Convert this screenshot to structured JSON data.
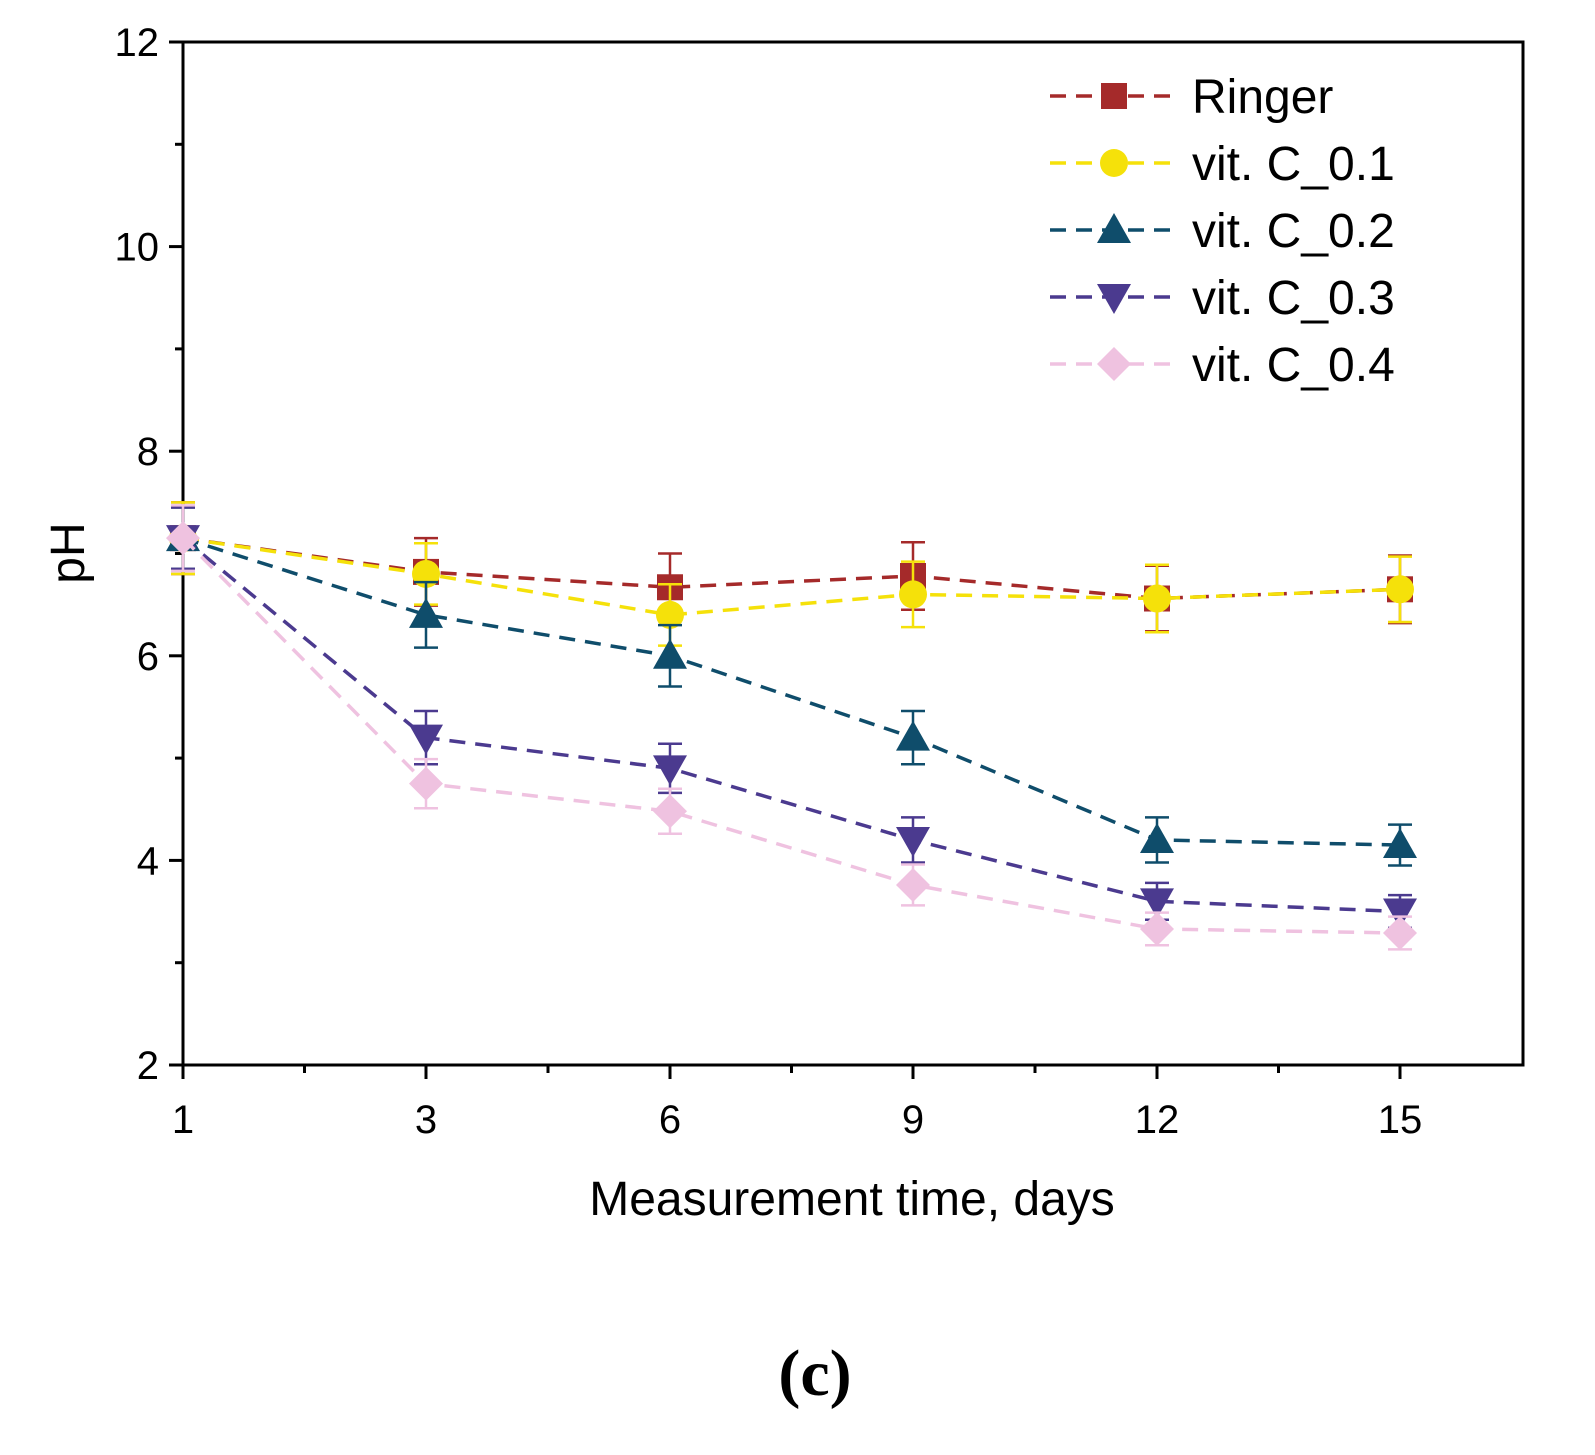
{
  "chart_data": {
    "type": "line",
    "title": "",
    "xlabel": "Measurement time, days",
    "ylabel": "pH",
    "panel_label": "(c)",
    "x": [
      1,
      3,
      6,
      9,
      12,
      15
    ],
    "x_tick_labels": [
      "1",
      "3",
      "6",
      "9",
      "12",
      "15"
    ],
    "y_tick_labels": [
      "2",
      "4",
      "6",
      "8",
      "10",
      "12"
    ],
    "ylim": [
      2,
      12
    ],
    "grid": false,
    "legend_position": "top-right",
    "series": [
      {
        "name": "Ringer",
        "color": "#a52a2a",
        "marker": "square",
        "values": [
          7.15,
          6.82,
          6.67,
          6.78,
          6.56,
          6.65
        ],
        "errors": [
          0.35,
          0.33,
          0.33,
          0.33,
          0.32,
          0.33
        ]
      },
      {
        "name": "vit. C_0.1",
        "color": "#f5e10a",
        "marker": "circle",
        "values": [
          7.15,
          6.8,
          6.4,
          6.6,
          6.56,
          6.65
        ],
        "errors": [
          0.35,
          0.3,
          0.3,
          0.32,
          0.33,
          0.32
        ]
      },
      {
        "name": "vit. C_0.2",
        "color": "#0f4d6b",
        "marker": "triangle-up",
        "values": [
          7.15,
          6.4,
          6.0,
          5.2,
          4.2,
          4.15
        ],
        "errors": [
          0.3,
          0.32,
          0.3,
          0.26,
          0.22,
          0.2
        ]
      },
      {
        "name": "vit. C_0.3",
        "color": "#4b3a8f",
        "marker": "triangle-down",
        "values": [
          7.15,
          5.2,
          4.9,
          4.2,
          3.6,
          3.5
        ],
        "errors": [
          0.3,
          0.26,
          0.24,
          0.22,
          0.18,
          0.16
        ]
      },
      {
        "name": "vit. C_0.4",
        "color": "#efc2e0",
        "marker": "diamond",
        "values": [
          7.15,
          4.75,
          4.48,
          3.76,
          3.33,
          3.29
        ],
        "errors": [
          0.32,
          0.24,
          0.22,
          0.2,
          0.16,
          0.16
        ]
      }
    ]
  }
}
